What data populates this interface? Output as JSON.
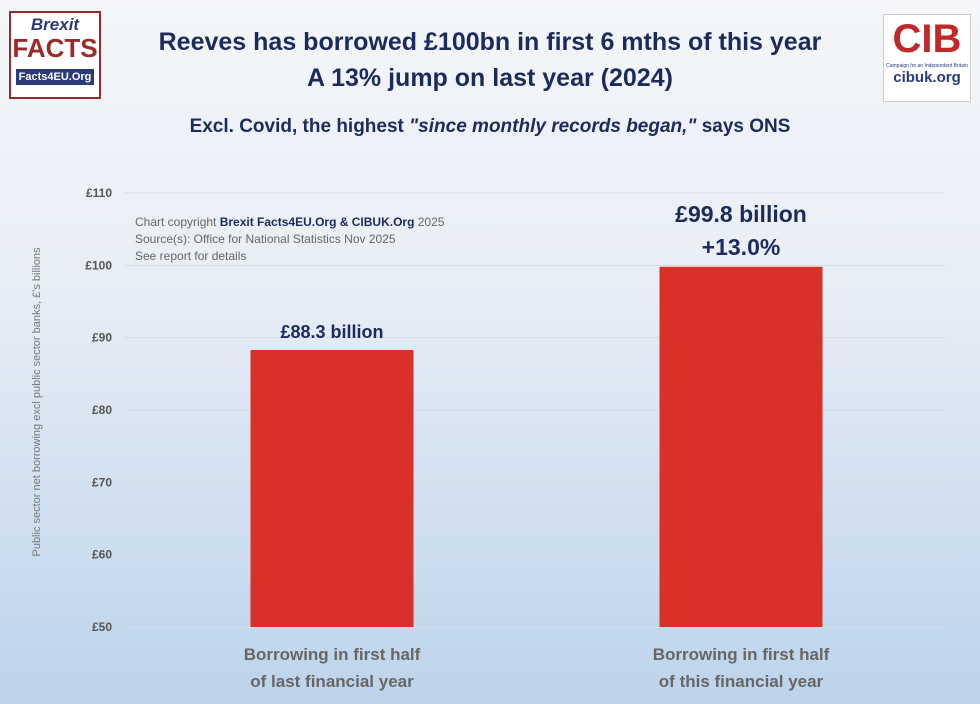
{
  "header": {
    "title_line1": "Reeves has borrowed £100bn in first 6 mths of this year",
    "title_line2": "A 13% jump on last year (2024)",
    "subtitle_pre": "Excl. Covid, the highest ",
    "subtitle_quote": "\"since monthly records began,\"",
    "subtitle_post": " says ONS"
  },
  "logos": {
    "left": {
      "line1": "Brexit",
      "line2": "FACTS",
      "line3": "Facts4EU.Org"
    },
    "right": {
      "mark": "CIB",
      "tagline": "Campaign for an Independent Britain",
      "url": "cibuk.org"
    }
  },
  "credits": {
    "prefix": "Chart copyright ",
    "bold": "Brexit Facts4EU.Org & CIBUK.Org",
    "suffix": " 2025",
    "source": "Source(s): Office for National Statistics Nov 2025",
    "note": "See report for details"
  },
  "colors": {
    "bar": "#d9302a",
    "title": "#1c2a5e"
  },
  "chart_data": {
    "type": "bar",
    "ylabel": "Public sector net borrowing excl public sector banks, £'s billions",
    "ylim": [
      50,
      110
    ],
    "yticks": [
      50,
      60,
      70,
      80,
      90,
      100,
      110
    ],
    "ytick_labels": [
      "£50",
      "£60",
      "£70",
      "£80",
      "£90",
      "£100",
      "£110"
    ],
    "grid": true,
    "categories": [
      "Borrowing in first half\nof last financial year",
      "Borrowing in first half\nof this financial year"
    ],
    "category_lines": [
      [
        "Borrowing in first half",
        "of last financial year"
      ],
      [
        "Borrowing in first half",
        "of this financial year"
      ]
    ],
    "values": [
      88.3,
      99.8
    ],
    "data_labels": [
      [
        "£88.3 billion"
      ],
      [
        "£99.8 billion",
        "+13.0%"
      ]
    ]
  }
}
